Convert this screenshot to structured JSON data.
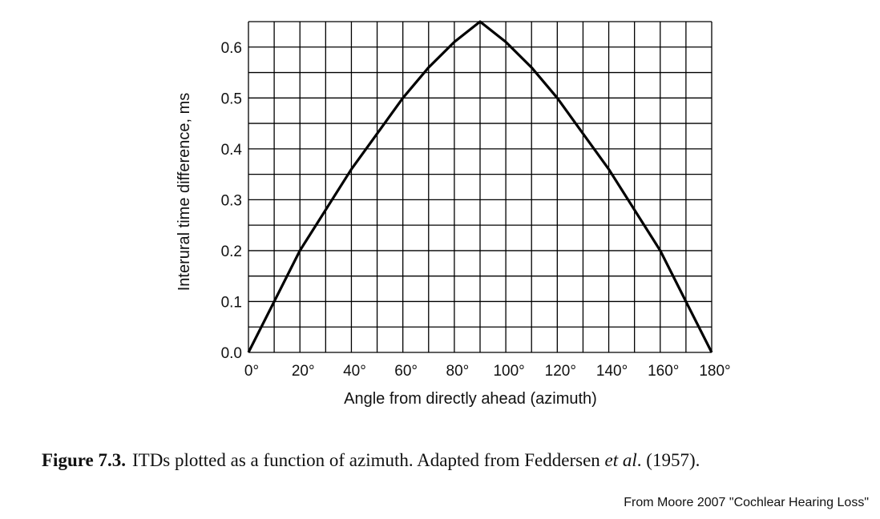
{
  "chart_data": {
    "type": "line",
    "xlabel": "Angle from directly ahead (azimuth)",
    "ylabel": "Interural time difference, ms",
    "xlim": [
      0,
      180
    ],
    "ylim": [
      0,
      0.65
    ],
    "grid": true,
    "x_grid_step": 10,
    "y_grid_step": 0.05,
    "x_tick_values": [
      0,
      20,
      40,
      60,
      80,
      100,
      120,
      140,
      160,
      180
    ],
    "x_tick_labels": [
      "0°",
      "20°",
      "40°",
      "60°",
      "80°",
      "100°",
      "120°",
      "140°",
      "160°",
      "180°"
    ],
    "y_tick_values": [
      0,
      0.1,
      0.2,
      0.3,
      0.4,
      0.5,
      0.6
    ],
    "y_tick_labels": [
      "0.0",
      "0.1",
      "0.2",
      "0.3",
      "0.4",
      "0.5",
      "0.6"
    ],
    "series": [
      {
        "x": [
          0,
          10,
          20,
          30,
          40,
          50,
          60,
          70,
          80,
          90,
          100,
          110,
          120,
          130,
          140,
          150,
          160,
          170,
          180
        ],
        "y": [
          0,
          0.1,
          0.2,
          0.28,
          0.36,
          0.43,
          0.5,
          0.56,
          0.61,
          0.65,
          0.61,
          0.56,
          0.5,
          0.43,
          0.36,
          0.28,
          0.2,
          0.1,
          0
        ],
        "color": "#000000"
      }
    ]
  },
  "caption": {
    "lead": "Figure 7.3.",
    "text_before": "ITDs plotted as a function of azimuth. Adapted from Feddersen ",
    "etal": "et al",
    "text_after": ". (1957)."
  },
  "source_note": "From Moore 2007 \"Cochlear Hearing Loss\""
}
